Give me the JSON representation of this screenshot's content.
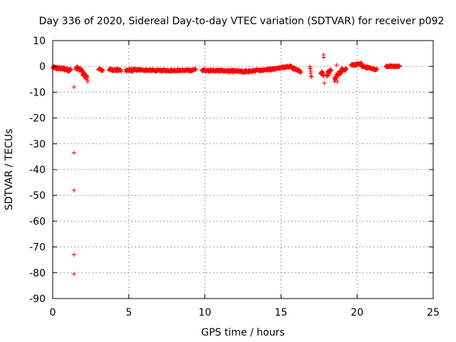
{
  "chart_data": {
    "type": "scatter",
    "title": "Day 336 of 2020, Sidereal Day-to-day VTEC variation (SDTVAR) for receiver p092",
    "xlabel": "GPS time / hours",
    "ylabel": "SDTVAR / TECUs",
    "xlim": [
      0,
      25
    ],
    "ylim": [
      -90,
      10
    ],
    "xticks": [
      0,
      5,
      10,
      15,
      20,
      25
    ],
    "yticks": [
      10,
      0,
      -10,
      -20,
      -30,
      -40,
      -50,
      -60,
      -70,
      -80,
      -90
    ],
    "xtick_labels": [
      "0",
      "5",
      "10",
      "15",
      "20",
      "25"
    ],
    "ytick_labels": [
      "10",
      "0",
      "-10",
      "-20",
      "-30",
      "-40",
      "-50",
      "-60",
      "-70",
      "-80",
      "-90"
    ],
    "grid": true,
    "marker": "plus",
    "color": "#ff0000",
    "series": [
      {
        "name": "SDTVAR",
        "segments": [
          {
            "t0": 0.0,
            "t1": 0.8,
            "v0": -0.5,
            "v1": -1.0,
            "spread": 1.2
          },
          {
            "t0": 0.8,
            "t1": 1.2,
            "v0": -1.0,
            "v1": -1.5,
            "spread": 1.5
          },
          {
            "t0": 1.5,
            "t1": 1.9,
            "v0": -0.5,
            "v1": -1.5,
            "spread": 1.5
          },
          {
            "t0": 1.9,
            "t1": 2.3,
            "v0": -2.0,
            "v1": -5.0,
            "spread": 2.0
          },
          {
            "t0": 3.0,
            "t1": 3.3,
            "v0": -1.0,
            "v1": -1.5,
            "spread": 1.0
          },
          {
            "t0": 3.7,
            "t1": 4.5,
            "v0": -1.2,
            "v1": -1.5,
            "spread": 1.0
          },
          {
            "t0": 4.8,
            "t1": 5.3,
            "v0": -1.5,
            "v1": -1.5,
            "spread": 1.2
          },
          {
            "t0": 5.3,
            "t1": 7.0,
            "v0": -1.3,
            "v1": -1.6,
            "spread": 0.7
          },
          {
            "t0": 7.0,
            "t1": 9.2,
            "v0": -1.6,
            "v1": -1.5,
            "spread": 0.7
          },
          {
            "t0": 9.2,
            "t1": 9.4,
            "v0": -1.3,
            "v1": -1.2,
            "spread": 0.6
          },
          {
            "t0": 9.8,
            "t1": 11.5,
            "v0": -1.5,
            "v1": -1.7,
            "spread": 0.8
          },
          {
            "t0": 11.5,
            "t1": 13.0,
            "v0": -1.8,
            "v1": -2.0,
            "spread": 1.0
          },
          {
            "t0": 13.0,
            "t1": 14.8,
            "v0": -1.8,
            "v1": -0.8,
            "spread": 0.8
          },
          {
            "t0": 14.8,
            "t1": 15.7,
            "v0": -0.5,
            "v1": 0.0,
            "spread": 0.8
          },
          {
            "t0": 15.7,
            "t1": 16.3,
            "v0": -0.5,
            "v1": -2.0,
            "spread": 1.0
          },
          {
            "t0": 16.9,
            "t1": 17.0,
            "v0": -0.5,
            "v1": -3.5,
            "spread": 1.5
          },
          {
            "t0": 17.6,
            "t1": 17.8,
            "v0": -2.0,
            "v1": -3.0,
            "spread": 2.0
          },
          {
            "t0": 18.0,
            "t1": 18.3,
            "v0": -3.0,
            "v1": -2.0,
            "spread": 2.0
          },
          {
            "t0": 18.5,
            "t1": 19.0,
            "v0": -5.0,
            "v1": -1.5,
            "spread": 2.0
          },
          {
            "t0": 19.0,
            "t1": 19.3,
            "v0": -1.5,
            "v1": -1.0,
            "spread": 1.0
          },
          {
            "t0": 19.6,
            "t1": 20.3,
            "v0": 0.5,
            "v1": 1.0,
            "spread": 1.0
          },
          {
            "t0": 20.3,
            "t1": 21.3,
            "v0": 0.0,
            "v1": -1.2,
            "spread": 0.8
          },
          {
            "t0": 21.9,
            "t1": 22.8,
            "v0": 0.0,
            "v1": 0.0,
            "spread": 0.8
          }
        ],
        "points": [
          {
            "x": 1.4,
            "y": -8.0
          },
          {
            "x": 1.4,
            "y": -33.5
          },
          {
            "x": 1.4,
            "y": -48.0
          },
          {
            "x": 1.4,
            "y": -73.0
          },
          {
            "x": 1.4,
            "y": -80.5
          },
          {
            "x": 17.8,
            "y": 4.5
          },
          {
            "x": 17.8,
            "y": 3.5
          },
          {
            "x": 17.85,
            "y": -6.5
          },
          {
            "x": 18.65,
            "y": 0.5
          },
          {
            "x": 18.7,
            "y": -6.0
          }
        ]
      }
    ]
  }
}
